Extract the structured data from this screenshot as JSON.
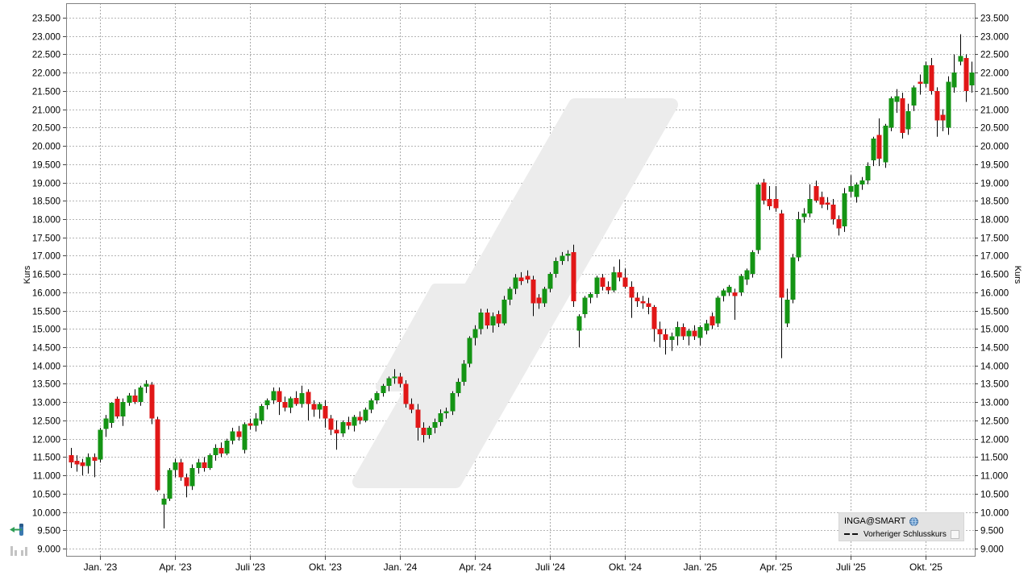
{
  "legend": {
    "instrument": "INGA@SMART",
    "series": "Vorheriger Schlusskurs",
    "instrument_icon": "globe-icon",
    "series_marker": "dashed-line-marker",
    "series_checkbox_checked": false
  },
  "axes": {
    "y_left_title": "Kurs",
    "y_right_title": "Kurs"
  },
  "icons": {
    "bottom_left_1": "pan-left-icon",
    "bottom_left_2": "mini-bar-chart-icon"
  },
  "chart_data": {
    "type": "candlestick",
    "title": "",
    "xlabel": "",
    "ylabel": "Kurs",
    "ylim": [
      9.0,
      23.5
    ],
    "y_tick_step": 0.5,
    "grid": true,
    "legend_position": "bottom-right",
    "x_tick_labels": [
      "Jan. '23",
      "Apr. '23",
      "Juli '23",
      "Okt. '23",
      "Jan. '24",
      "Apr. '24",
      "Juli '24",
      "Okt. '24",
      "Jan. '25",
      "Apr. '25",
      "Juli '25",
      "Okt. '25"
    ],
    "x_tick_weeks": [
      5,
      18,
      31,
      44,
      57,
      70,
      83,
      96,
      109,
      122,
      135,
      148
    ],
    "colors": {
      "up": "#149414",
      "down": "#e11717",
      "wick": "#000000",
      "grid": "#b5b5b5",
      "border": "#808080",
      "watermark": "#ececec",
      "legend_bg": "#e3e3e3"
    },
    "candles": [
      [
        11.55,
        11.75,
        11.2,
        11.35
      ],
      [
        11.4,
        11.55,
        11.1,
        11.3
      ],
      [
        11.35,
        11.45,
        11.0,
        11.25
      ],
      [
        11.25,
        11.6,
        11.05,
        11.5
      ],
      [
        11.5,
        11.6,
        10.95,
        11.4
      ],
      [
        11.43,
        12.3,
        11.35,
        12.25
      ],
      [
        12.27,
        12.65,
        12.05,
        12.55
      ],
      [
        12.43,
        13.0,
        12.3,
        12.98
      ],
      [
        13.09,
        13.15,
        12.55,
        12.61
      ],
      [
        12.61,
        13.1,
        12.35,
        13.0
      ],
      [
        12.98,
        13.25,
        12.9,
        13.18
      ],
      [
        13.18,
        13.35,
        12.95,
        13.0
      ],
      [
        13.0,
        13.45,
        12.9,
        13.4
      ],
      [
        13.42,
        13.6,
        13.25,
        13.5
      ],
      [
        13.48,
        13.55,
        12.4,
        12.55
      ],
      [
        12.53,
        12.6,
        10.55,
        10.6
      ],
      [
        10.2,
        10.5,
        9.55,
        10.36
      ],
      [
        10.36,
        11.2,
        10.3,
        11.15
      ],
      [
        11.15,
        11.45,
        10.95,
        11.35
      ],
      [
        11.35,
        11.45,
        10.85,
        10.95
      ],
      [
        10.95,
        11.05,
        10.4,
        10.7
      ],
      [
        10.7,
        11.3,
        10.6,
        11.2
      ],
      [
        11.2,
        11.45,
        11.05,
        11.35
      ],
      [
        11.35,
        11.5,
        11.1,
        11.2
      ],
      [
        11.2,
        11.6,
        11.15,
        11.55
      ],
      [
        11.55,
        11.85,
        11.4,
        11.75
      ],
      [
        11.75,
        11.9,
        11.5,
        11.6
      ],
      [
        11.6,
        12.0,
        11.55,
        11.95
      ],
      [
        11.95,
        12.3,
        11.85,
        12.2
      ],
      [
        12.2,
        12.35,
        11.95,
        12.05
      ],
      [
        11.7,
        12.45,
        11.6,
        12.4
      ],
      [
        12.42,
        12.55,
        12.25,
        12.35
      ],
      [
        12.35,
        12.7,
        12.2,
        12.55
      ],
      [
        12.5,
        12.95,
        12.4,
        12.9
      ],
      [
        12.92,
        13.1,
        12.8,
        13.05
      ],
      [
        13.05,
        13.4,
        12.95,
        13.3
      ],
      [
        13.3,
        13.4,
        12.65,
        13.0
      ],
      [
        13.0,
        13.15,
        12.75,
        12.85
      ],
      [
        12.85,
        13.15,
        12.7,
        13.1
      ],
      [
        13.12,
        13.3,
        12.9,
        12.95
      ],
      [
        12.95,
        13.45,
        12.85,
        13.25
      ],
      [
        13.28,
        13.35,
        12.5,
        12.95
      ],
      [
        12.95,
        13.05,
        12.6,
        12.8
      ],
      [
        12.8,
        13.0,
        12.55,
        12.95
      ],
      [
        12.9,
        13.05,
        12.3,
        12.55
      ],
      [
        12.55,
        12.65,
        12.1,
        12.25
      ],
      [
        12.25,
        12.5,
        11.7,
        12.15
      ],
      [
        12.15,
        12.5,
        12.05,
        12.45
      ],
      [
        12.45,
        12.6,
        12.25,
        12.35
      ],
      [
        12.35,
        12.65,
        12.2,
        12.6
      ],
      [
        12.6,
        12.75,
        12.4,
        12.5
      ],
      [
        12.5,
        12.85,
        12.45,
        12.8
      ],
      [
        12.8,
        13.1,
        12.7,
        13.05
      ],
      [
        13.05,
        13.3,
        12.95,
        13.25
      ],
      [
        13.25,
        13.5,
        13.15,
        13.45
      ],
      [
        13.45,
        13.7,
        13.3,
        13.65
      ],
      [
        13.65,
        13.9,
        13.5,
        13.7
      ],
      [
        13.7,
        13.8,
        13.4,
        13.5
      ],
      [
        13.5,
        13.6,
        12.85,
        12.95
      ],
      [
        12.95,
        13.1,
        12.7,
        12.8
      ],
      [
        12.8,
        12.95,
        11.95,
        12.3
      ],
      [
        12.3,
        12.45,
        11.9,
        12.1
      ],
      [
        12.1,
        12.35,
        12.0,
        12.3
      ],
      [
        12.3,
        12.55,
        12.15,
        12.45
      ],
      [
        12.45,
        12.8,
        12.35,
        12.7
      ],
      [
        12.7,
        12.85,
        12.55,
        12.75
      ],
      [
        12.75,
        13.3,
        12.65,
        13.25
      ],
      [
        13.25,
        13.65,
        13.15,
        13.55
      ],
      [
        13.55,
        14.15,
        13.45,
        14.05
      ],
      [
        14.05,
        14.8,
        13.95,
        14.75
      ],
      [
        14.75,
        15.1,
        14.55,
        15.0
      ],
      [
        15.0,
        15.55,
        14.85,
        15.45
      ],
      [
        15.45,
        15.55,
        15.0,
        15.1
      ],
      [
        15.1,
        15.45,
        14.9,
        15.35
      ],
      [
        15.4,
        15.5,
        15.05,
        15.15
      ],
      [
        15.15,
        15.9,
        15.1,
        15.8
      ],
      [
        15.8,
        16.15,
        15.65,
        16.1
      ],
      [
        16.1,
        16.5,
        15.95,
        16.4
      ],
      [
        16.4,
        16.55,
        16.2,
        16.3
      ],
      [
        16.45,
        16.6,
        16.25,
        16.35
      ],
      [
        16.35,
        16.45,
        15.35,
        15.7
      ],
      [
        15.85,
        15.95,
        15.55,
        15.7
      ],
      [
        15.7,
        16.15,
        15.6,
        16.1
      ],
      [
        16.1,
        16.55,
        16.0,
        16.5
      ],
      [
        16.5,
        16.95,
        16.4,
        16.85
      ],
      [
        16.85,
        17.1,
        16.75,
        17.0
      ],
      [
        17.0,
        17.15,
        16.85,
        17.05
      ],
      [
        17.1,
        17.3,
        15.6,
        15.75
      ],
      [
        14.95,
        15.4,
        14.5,
        15.35
      ],
      [
        15.4,
        15.9,
        15.3,
        15.85
      ],
      [
        15.85,
        16.0,
        15.7,
        15.95
      ],
      [
        15.95,
        16.45,
        15.85,
        16.4
      ],
      [
        16.4,
        16.5,
        16.05,
        16.15
      ],
      [
        16.15,
        16.3,
        15.95,
        16.05
      ],
      [
        16.05,
        16.7,
        16.0,
        16.55
      ],
      [
        16.55,
        16.9,
        16.3,
        16.4
      ],
      [
        16.4,
        16.65,
        16.1,
        16.15
      ],
      [
        16.15,
        16.3,
        15.3,
        15.85
      ],
      [
        15.85,
        16.0,
        15.6,
        15.75
      ],
      [
        15.75,
        15.9,
        15.55,
        15.7
      ],
      [
        15.7,
        15.85,
        15.4,
        15.6
      ],
      [
        15.6,
        15.65,
        14.65,
        15.0
      ],
      [
        15.0,
        15.2,
        14.5,
        14.85
      ],
      [
        14.85,
        15.0,
        14.3,
        14.7
      ],
      [
        14.7,
        14.9,
        14.4,
        14.8
      ],
      [
        14.8,
        15.2,
        14.55,
        15.05
      ],
      [
        15.05,
        15.15,
        14.7,
        14.8
      ],
      [
        14.8,
        15.0,
        14.55,
        14.95
      ],
      [
        14.95,
        15.1,
        14.7,
        14.8
      ],
      [
        14.75,
        15.1,
        14.55,
        15.05
      ],
      [
        14.95,
        15.25,
        14.85,
        15.15
      ],
      [
        15.35,
        15.45,
        15.0,
        15.1
      ],
      [
        15.15,
        15.9,
        15.05,
        15.85
      ],
      [
        15.9,
        16.1,
        15.75,
        16.05
      ],
      [
        16.0,
        16.2,
        15.9,
        16.15
      ],
      [
        16.0,
        16.1,
        15.25,
        15.9
      ],
      [
        16.0,
        16.5,
        15.9,
        16.45
      ],
      [
        16.35,
        16.65,
        16.2,
        16.6
      ],
      [
        16.5,
        17.15,
        16.4,
        17.1
      ],
      [
        17.15,
        19.0,
        17.05,
        18.95
      ],
      [
        19.0,
        19.1,
        18.4,
        18.5
      ],
      [
        18.55,
        18.9,
        18.25,
        18.35
      ],
      [
        18.55,
        18.9,
        18.2,
        18.3
      ],
      [
        18.15,
        18.25,
        14.2,
        15.85
      ],
      [
        15.15,
        16.1,
        15.05,
        15.8
      ],
      [
        15.8,
        17.05,
        15.7,
        16.95
      ],
      [
        16.95,
        18.2,
        16.85,
        18.0
      ],
      [
        18.05,
        18.3,
        17.9,
        18.15
      ],
      [
        18.15,
        18.95,
        18.05,
        18.55
      ],
      [
        18.9,
        19.05,
        18.45,
        18.5
      ],
      [
        18.6,
        18.75,
        18.3,
        18.4
      ],
      [
        18.45,
        18.6,
        18.25,
        18.4
      ],
      [
        18.4,
        18.55,
        17.85,
        18.0
      ],
      [
        18.0,
        18.1,
        17.55,
        17.75
      ],
      [
        17.8,
        18.85,
        17.65,
        18.7
      ],
      [
        18.75,
        19.2,
        18.6,
        18.9
      ],
      [
        18.6,
        19.0,
        18.45,
        18.95
      ],
      [
        18.95,
        19.15,
        18.8,
        19.05
      ],
      [
        19.05,
        19.55,
        18.95,
        19.45
      ],
      [
        19.6,
        20.25,
        19.45,
        20.2
      ],
      [
        20.3,
        20.75,
        19.45,
        19.65
      ],
      [
        19.55,
        20.6,
        19.4,
        20.55
      ],
      [
        20.5,
        21.35,
        20.4,
        21.3
      ],
      [
        21.2,
        21.55,
        20.9,
        21.35
      ],
      [
        21.3,
        21.45,
        20.2,
        20.35
      ],
      [
        20.45,
        21.15,
        20.3,
        20.95
      ],
      [
        21.1,
        21.65,
        20.95,
        21.6
      ],
      [
        21.75,
        21.95,
        21.4,
        21.7
      ],
      [
        21.7,
        22.3,
        21.6,
        22.2
      ],
      [
        22.2,
        22.4,
        21.4,
        21.5
      ],
      [
        21.5,
        21.6,
        20.25,
        20.7
      ],
      [
        20.85,
        21.0,
        20.4,
        20.7
      ],
      [
        20.5,
        21.9,
        20.3,
        21.75
      ],
      [
        21.6,
        22.5,
        21.45,
        22.0
      ],
      [
        22.3,
        23.05,
        22.2,
        22.45
      ],
      [
        22.4,
        22.5,
        21.2,
        21.5
      ],
      [
        21.65,
        22.3,
        21.45,
        22.0
      ]
    ]
  }
}
